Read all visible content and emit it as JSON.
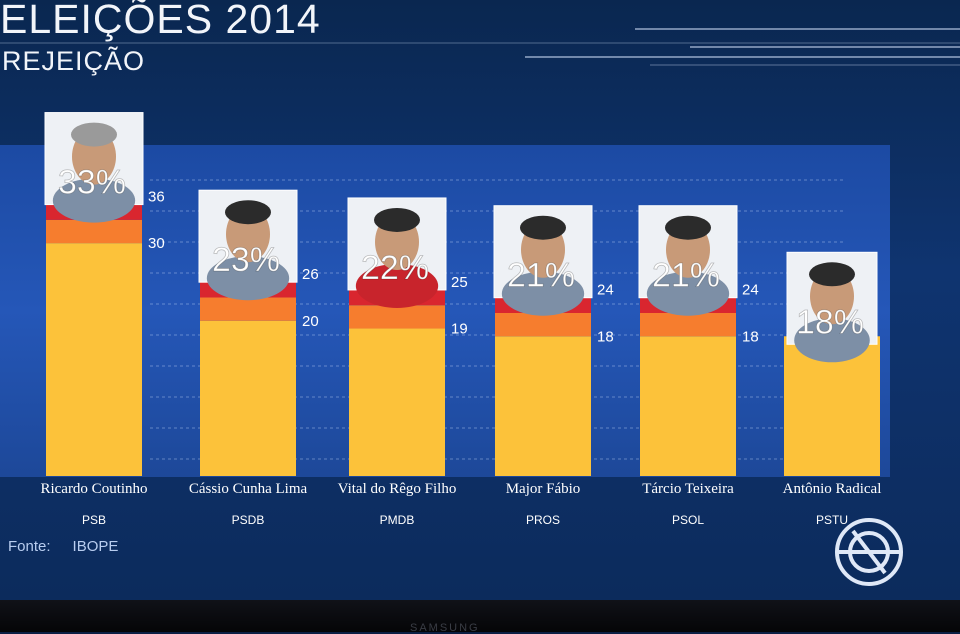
{
  "header": {
    "title": "ELEIÇÕES 2014",
    "subtitle": "REJEIÇÃO"
  },
  "footer": {
    "source_label": "Fonte:",
    "source_value": "IBOPE"
  },
  "tv_brand": "SAMSUNG",
  "colors": {
    "bar_base": "#fcc23a",
    "bar_margin_lower": "#f67d2e",
    "bar_margin_upper": "#d9262f",
    "text": "#ffffff",
    "panel": "#2557b8"
  },
  "chart_data": {
    "type": "bar",
    "title": "REJEIÇÃO",
    "categories": [
      "Ricardo Coutinho",
      "Cássio Cunha Lima",
      "Vital do Rêgo Filho",
      "Major Fábio",
      "Tárcio Teixeira",
      "Antônio Radical"
    ],
    "parties": [
      "PSB",
      "PSDB",
      "PMDB",
      "PROS",
      "PSOL",
      "PSTU"
    ],
    "series": [
      {
        "values": [
          33,
          23,
          22,
          21,
          21,
          18
        ],
        "value_labels": [
          "33%",
          "23%",
          "22%",
          "21%",
          "21%",
          "18%"
        ],
        "lower_bound": [
          30,
          20,
          19,
          18,
          18,
          null
        ],
        "upper_bound": [
          36,
          26,
          25,
          24,
          24,
          null
        ]
      }
    ],
    "ylim": [
      0,
      42
    ],
    "grid": true
  }
}
